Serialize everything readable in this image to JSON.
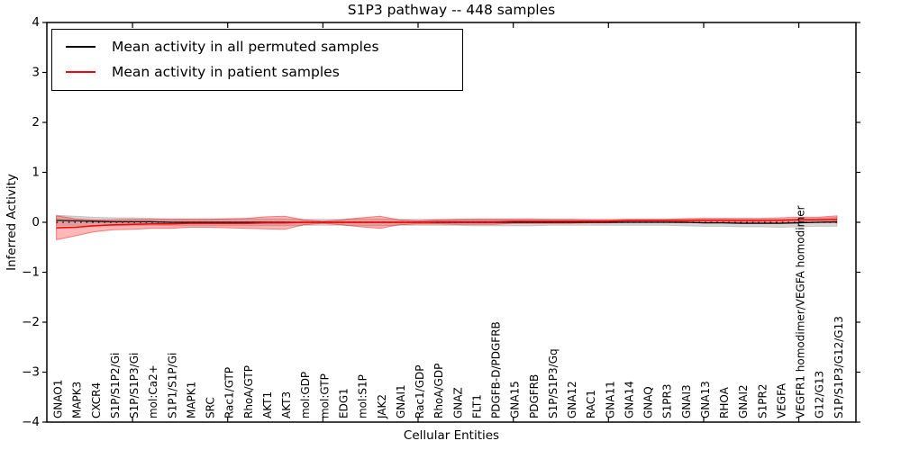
{
  "chart_data": {
    "type": "line",
    "title": "S1P3 pathway -- 448 samples",
    "xlabel": "Cellular Entities",
    "ylabel": "Inferred Activity",
    "ylim": [
      -4,
      4
    ],
    "grid": false,
    "legend_position": "upper left",
    "yticks": [
      {
        "value": 4,
        "label": "4"
      },
      {
        "value": 3,
        "label": "3"
      },
      {
        "value": 2,
        "label": "2"
      },
      {
        "value": 1,
        "label": "1"
      },
      {
        "value": 0,
        "label": "0"
      },
      {
        "value": -1,
        "label": "−1"
      },
      {
        "value": -2,
        "label": "−2"
      },
      {
        "value": -3,
        "label": "−3"
      },
      {
        "value": -4,
        "label": "−4"
      }
    ],
    "xtick_positions": [
      4,
      9,
      14,
      19,
      24,
      29,
      34,
      39
    ],
    "categories": [
      "GNAO1",
      "MAPK3",
      "CXCR4",
      "S1P/S1P2/Gi",
      "S1P/S1P3/Gi",
      "mol:Ca2+",
      "S1P1/S1P/Gi",
      "MAPK1",
      "SRC",
      "Rac1/GTP",
      "RhoA/GTP",
      "AKT1",
      "AKT3",
      "mol:GDP",
      "mol:GTP",
      "EDG1",
      "mol:S1P",
      "JAK2",
      "GNAI1",
      "Rac1/GDP",
      "RhoA/GDP",
      "GNAZ",
      "FLT1",
      "PDGFB-D/PDGFRB",
      "GNA15",
      "PDGFRB",
      "S1P/S1P3/Gq",
      "GNA12",
      "RAC1",
      "GNA11",
      "GNA14",
      "GNAQ",
      "S1PR3",
      "GNAI3",
      "GNA13",
      "RHOA",
      "GNAI2",
      "S1PR2",
      "VEGFA",
      "VEGFR1 homodimer/VEGFA homodimer",
      "G12/G13",
      "S1P/S1P3/G12/G13"
    ],
    "series": [
      {
        "name": "Mean activity in all permuted samples",
        "color": "#000000",
        "line_width": 1.2,
        "band_fill": "#999999",
        "band_opacity": 0.38,
        "band_edge": "#7a7a7a",
        "band_edge_opacity": 0.35,
        "values": [
          0.04,
          0.03,
          0.02,
          0.01,
          0.01,
          0.01,
          0.0,
          0.0,
          0.0,
          0.0,
          0.0,
          0.0,
          0.0,
          0.0,
          0.0,
          0.0,
          0.0,
          0.0,
          0.0,
          0.0,
          0.0,
          0.0,
          0.0,
          0.0,
          0.0,
          0.0,
          0.0,
          0.0,
          0.0,
          0.0,
          0.0,
          0.0,
          0.0,
          0.0,
          -0.01,
          -0.01,
          -0.02,
          -0.02,
          -0.02,
          -0.01,
          0.0,
          0.01
        ],
        "std": [
          0.1,
          0.09,
          0.08,
          0.08,
          0.08,
          0.07,
          0.07,
          0.07,
          0.07,
          0.07,
          0.07,
          0.07,
          0.07,
          0.06,
          0.06,
          0.06,
          0.07,
          0.07,
          0.06,
          0.06,
          0.06,
          0.06,
          0.07,
          0.07,
          0.07,
          0.07,
          0.06,
          0.06,
          0.06,
          0.06,
          0.06,
          0.06,
          0.06,
          0.07,
          0.07,
          0.07,
          0.07,
          0.07,
          0.08,
          0.08,
          0.08,
          0.09
        ]
      },
      {
        "name": "Mean activity in patient samples",
        "color": "#ff0000",
        "line_width": 1.5,
        "band_fill": "#ff2222",
        "band_opacity": 0.32,
        "band_edge": "#ff0000",
        "band_edge_opacity": 0.45,
        "values": [
          -0.11,
          -0.1,
          -0.07,
          -0.05,
          -0.04,
          -0.03,
          -0.03,
          -0.02,
          -0.02,
          -0.02,
          -0.02,
          -0.01,
          -0.01,
          0.0,
          0.0,
          0.0,
          0.0,
          0.0,
          0.0,
          0.0,
          0.01,
          0.01,
          0.01,
          0.01,
          0.02,
          0.02,
          0.02,
          0.02,
          0.02,
          0.02,
          0.03,
          0.03,
          0.03,
          0.03,
          0.04,
          0.04,
          0.04,
          0.04,
          0.04,
          0.05,
          0.05,
          0.06
        ],
        "std": [
          0.24,
          0.17,
          0.12,
          0.1,
          0.1,
          0.09,
          0.09,
          0.08,
          0.08,
          0.09,
          0.1,
          0.12,
          0.13,
          0.05,
          0.02,
          0.05,
          0.09,
          0.12,
          0.05,
          0.03,
          0.04,
          0.05,
          0.05,
          0.05,
          0.04,
          0.04,
          0.04,
          0.04,
          0.03,
          0.03,
          0.03,
          0.03,
          0.03,
          0.04,
          0.04,
          0.04,
          0.04,
          0.04,
          0.05,
          0.05,
          0.05,
          0.07
        ]
      }
    ]
  }
}
